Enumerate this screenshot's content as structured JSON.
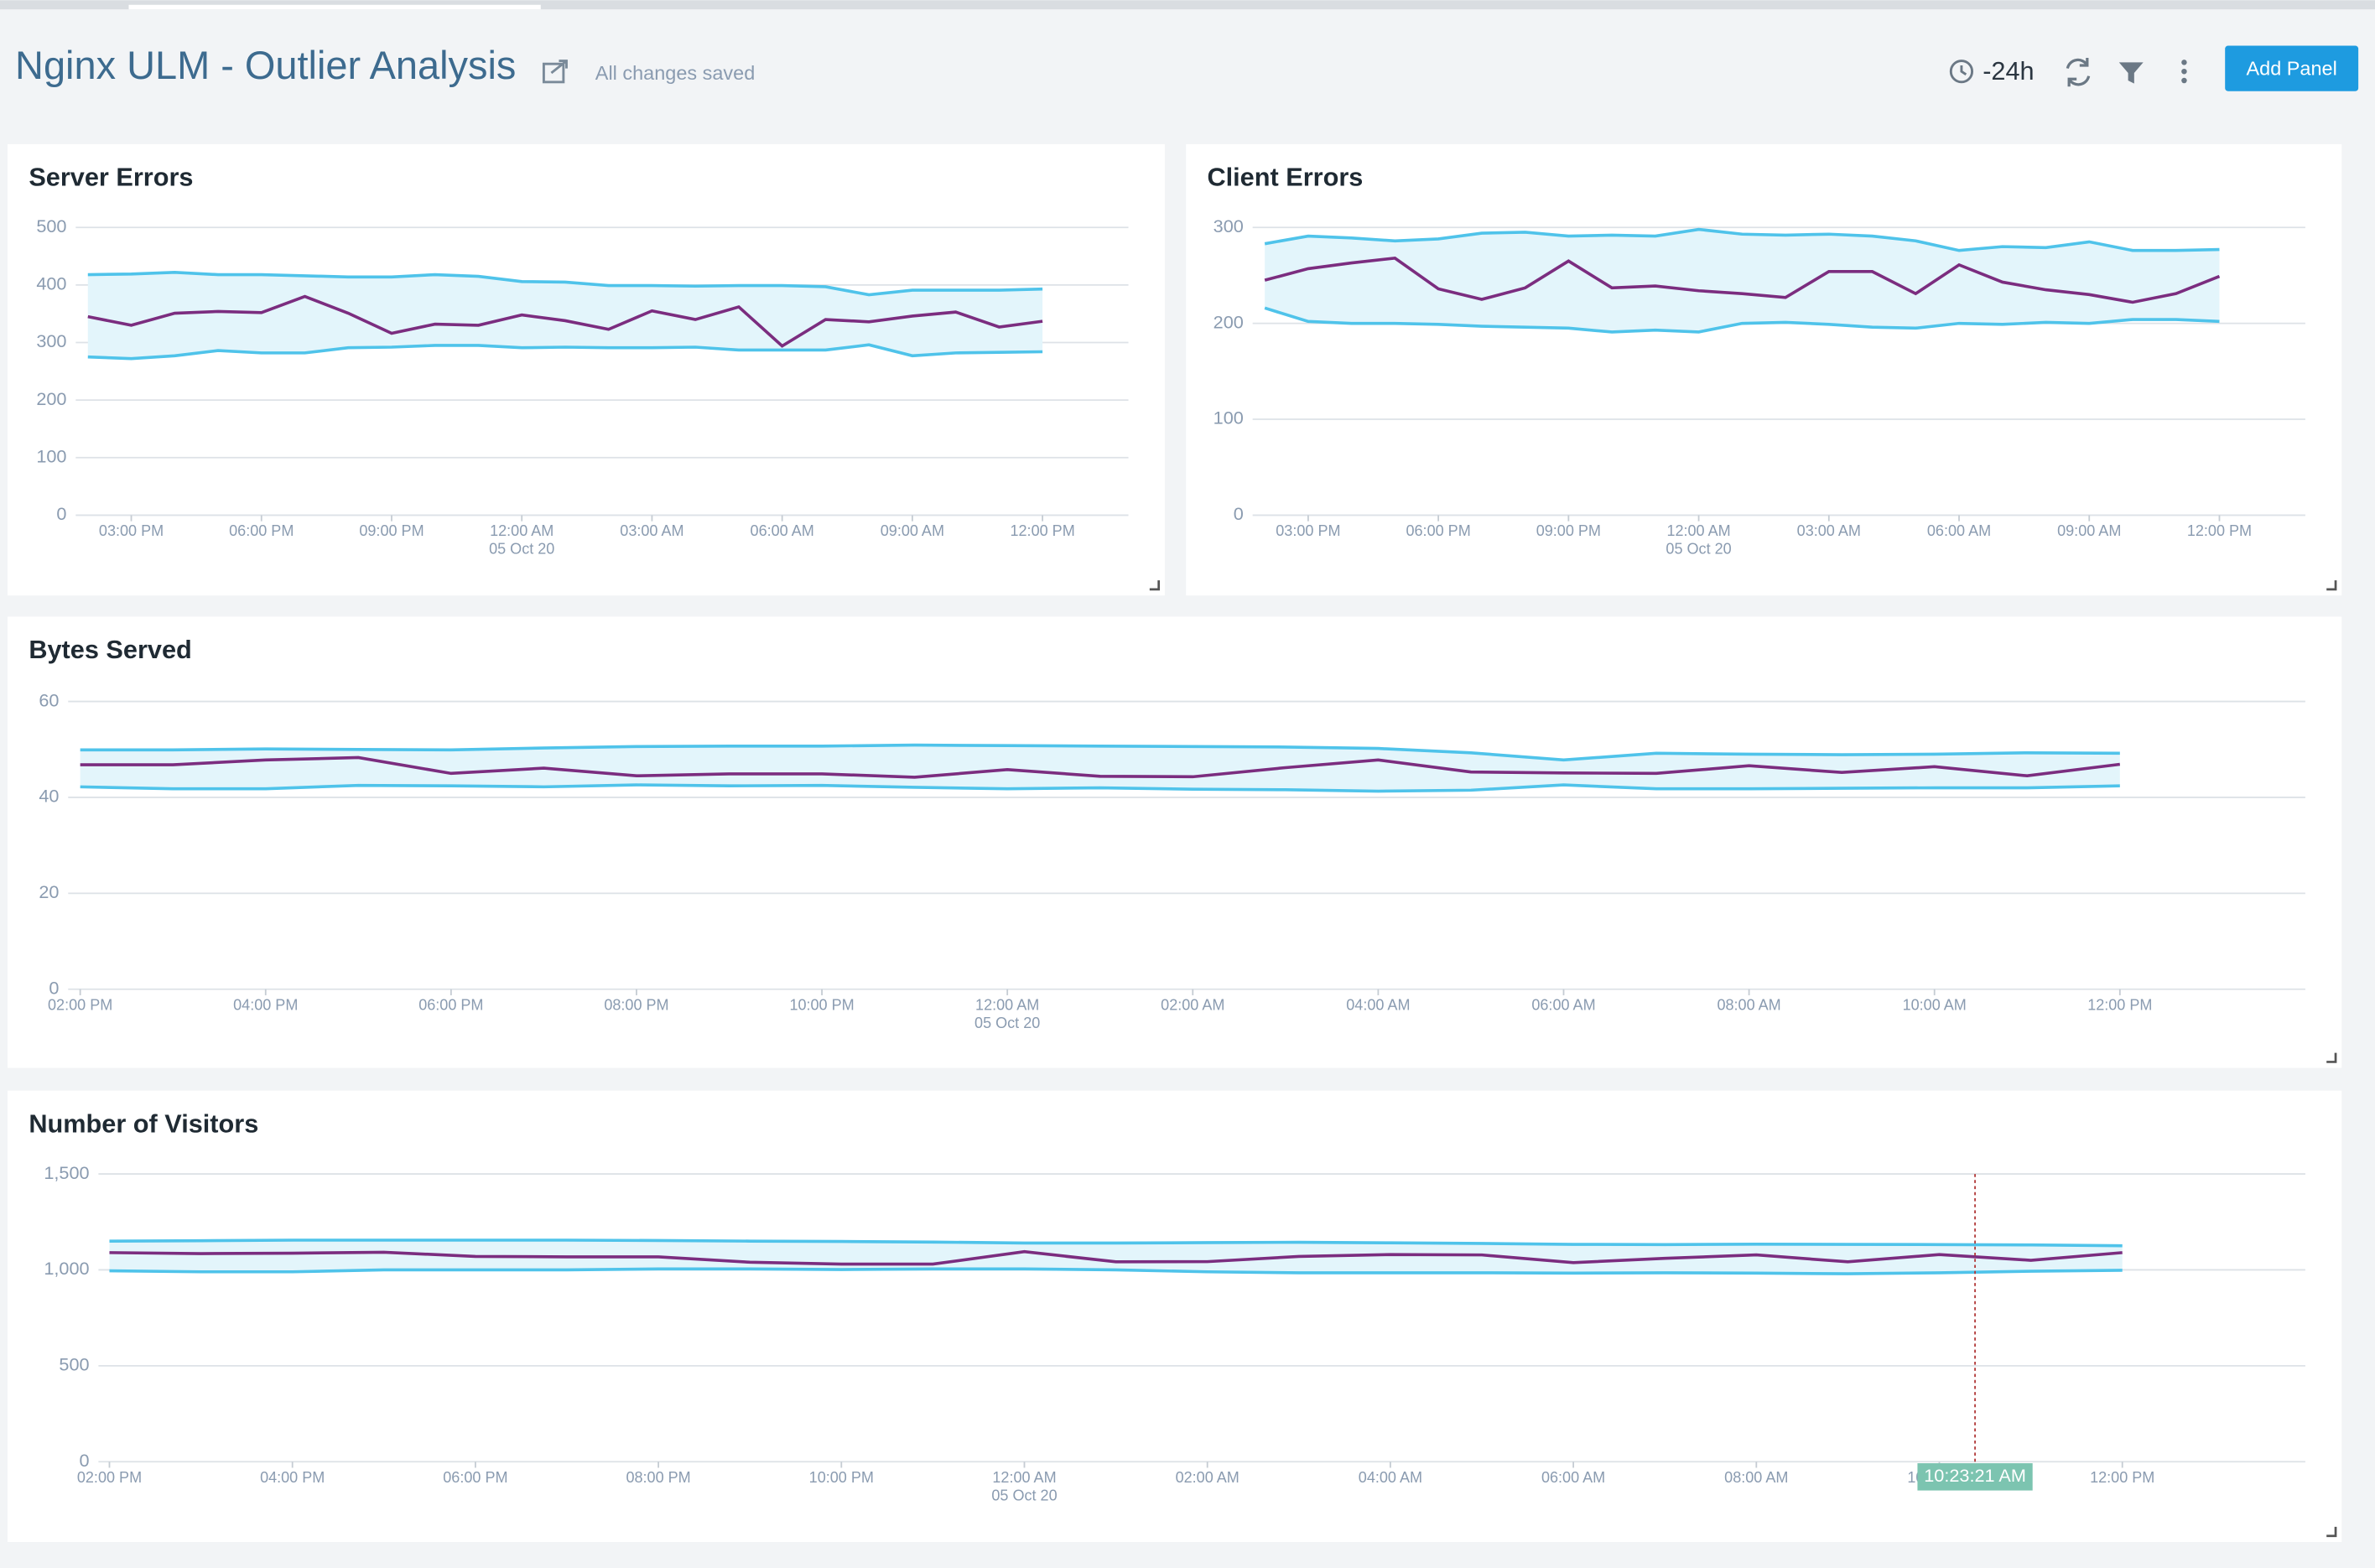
{
  "header": {
    "title": "Nginx ULM - Outlier Analysis",
    "status": "All changes saved",
    "time_range": "-24h",
    "button": "Add Panel"
  },
  "chart_data": [
    {
      "type": "line",
      "title": "Server Errors",
      "band": true,
      "band_color": "#e3f5fb",
      "grid": true,
      "x": [
        0,
        1,
        2,
        3,
        4,
        5,
        6,
        7,
        8,
        9,
        10,
        11,
        12,
        13,
        14,
        15,
        16,
        17,
        18,
        19,
        20,
        21,
        22
      ],
      "xlim": [
        -0.28,
        23.98
      ],
      "ylim": [
        0,
        500
      ],
      "yticks": [
        0,
        100,
        200,
        300,
        400,
        500
      ],
      "xticks": [
        {
          "value": 1,
          "label": "03:00 PM"
        },
        {
          "value": 4,
          "label": "06:00 PM"
        },
        {
          "value": 7,
          "label": "09:00 PM"
        },
        {
          "value": 10,
          "label": "12:00 AM",
          "date": "05 Oct 20"
        },
        {
          "value": 13,
          "label": "03:00 AM"
        },
        {
          "value": 16,
          "label": "06:00 AM"
        },
        {
          "value": 19,
          "label": "09:00 AM"
        },
        {
          "value": 22,
          "label": "12:00 PM"
        }
      ],
      "series": [
        {
          "color": "#4fc3ea",
          "values": [
            418,
            419,
            422,
            418,
            418,
            416,
            414,
            414,
            418,
            415,
            406,
            405,
            399,
            399,
            398,
            399,
            399,
            397,
            383,
            391,
            391,
            391,
            393
          ]
        },
        {
          "color": "#7b2d7f",
          "values": [
            345,
            330,
            351,
            354,
            352,
            380,
            351,
            316,
            332,
            330,
            348,
            338,
            323,
            355,
            340,
            362,
            294,
            340,
            336,
            346,
            353,
            327,
            337
          ]
        },
        {
          "color": "#4fc3ea",
          "values": [
            275,
            272,
            277,
            286,
            282,
            282,
            291,
            292,
            295,
            295,
            291,
            292,
            291,
            291,
            292,
            287,
            287,
            287,
            296,
            277,
            282,
            283,
            284
          ]
        }
      ]
    },
    {
      "type": "line",
      "title": "Client Errors",
      "band": true,
      "band_color": "#e3f5fb",
      "grid": true,
      "x": [
        0,
        1,
        2,
        3,
        4,
        5,
        6,
        7,
        8,
        9,
        10,
        11,
        12,
        13,
        14,
        15,
        16,
        17,
        18,
        19,
        20,
        21,
        22
      ],
      "xlim": [
        -0.28,
        23.98
      ],
      "ylim": [
        0,
        300
      ],
      "yticks": [
        0,
        100,
        200,
        300
      ],
      "xticks": [
        {
          "value": 1,
          "label": "03:00 PM"
        },
        {
          "value": 4,
          "label": "06:00 PM"
        },
        {
          "value": 7,
          "label": "09:00 PM"
        },
        {
          "value": 10,
          "label": "12:00 AM",
          "date": "05 Oct 20"
        },
        {
          "value": 13,
          "label": "03:00 AM"
        },
        {
          "value": 16,
          "label": "06:00 AM"
        },
        {
          "value": 19,
          "label": "09:00 AM"
        },
        {
          "value": 22,
          "label": "12:00 PM"
        }
      ],
      "series": [
        {
          "color": "#4fc3ea",
          "values": [
            283,
            291,
            289,
            286,
            288,
            294,
            295,
            291,
            292,
            291,
            298,
            293,
            292,
            293,
            291,
            286,
            276,
            280,
            279,
            285,
            276,
            276,
            277
          ]
        },
        {
          "color": "#7b2d7f",
          "values": [
            245,
            257,
            263,
            268,
            236,
            225,
            237,
            265,
            237,
            239,
            234,
            231,
            227,
            254,
            254,
            231,
            261,
            243,
            235,
            230,
            222,
            231,
            249
          ]
        },
        {
          "color": "#4fc3ea",
          "values": [
            216,
            202,
            200,
            200,
            199,
            197,
            196,
            195,
            191,
            193,
            191,
            200,
            201,
            199,
            196,
            195,
            200,
            199,
            201,
            200,
            204,
            204,
            202
          ]
        }
      ]
    },
    {
      "type": "line",
      "title": "Bytes Served",
      "band": true,
      "band_color": "#e3f5fb",
      "grid": true,
      "x": [
        0,
        1,
        2,
        3,
        4,
        5,
        6,
        7,
        8,
        9,
        10,
        11,
        12,
        13,
        14,
        15,
        16,
        17,
        18,
        19,
        20,
        21,
        22
      ],
      "xlim": [
        -0.13,
        24
      ],
      "ylim": [
        0,
        60
      ],
      "yticks": [
        0,
        20,
        40,
        60
      ],
      "xticks": [
        {
          "value": 0,
          "label": "02:00 PM"
        },
        {
          "value": 2,
          "label": "04:00 PM"
        },
        {
          "value": 4,
          "label": "06:00 PM"
        },
        {
          "value": 6,
          "label": "08:00 PM"
        },
        {
          "value": 8,
          "label": "10:00 PM"
        },
        {
          "value": 10,
          "label": "12:00 AM",
          "date": "05 Oct 20"
        },
        {
          "value": 12,
          "label": "02:00 AM"
        },
        {
          "value": 14,
          "label": "04:00 AM"
        },
        {
          "value": 16,
          "label": "06:00 AM"
        },
        {
          "value": 18,
          "label": "08:00 AM"
        },
        {
          "value": 20,
          "label": "10:00 AM"
        },
        {
          "value": 22,
          "label": "12:00 PM"
        }
      ],
      "series": [
        {
          "color": "#4fc3ea",
          "values": [
            49.9,
            49.9,
            50.1,
            50.0,
            49.9,
            50.3,
            50.6,
            50.7,
            50.7,
            50.9,
            50.8,
            50.7,
            50.6,
            50.5,
            50.2,
            49.3,
            47.8,
            49.2,
            49.0,
            48.9,
            49.0,
            49.3,
            49.2
          ]
        },
        {
          "color": "#7b2d7f",
          "values": [
            46.8,
            46.8,
            47.8,
            48.3,
            45.0,
            46.1,
            44.5,
            44.9,
            44.9,
            44.2,
            45.8,
            44.4,
            44.3,
            46.2,
            47.8,
            45.3,
            45.1,
            45.0,
            46.6,
            45.2,
            46.4,
            44.5,
            46.9
          ]
        },
        {
          "color": "#4fc3ea",
          "values": [
            42.2,
            41.8,
            41.8,
            42.5,
            42.4,
            42.2,
            42.6,
            42.4,
            42.5,
            42.1,
            41.8,
            42.0,
            41.7,
            41.6,
            41.3,
            41.5,
            42.6,
            41.8,
            41.8,
            41.9,
            42.0,
            42.0,
            42.4
          ]
        }
      ]
    },
    {
      "type": "line",
      "title": "Number of Visitors",
      "band": true,
      "band_color": "#e3f5fb",
      "grid": true,
      "x": [
        0,
        1,
        2,
        3,
        4,
        5,
        6,
        7,
        8,
        9,
        10,
        11,
        12,
        13,
        14,
        15,
        16,
        17,
        18,
        19,
        20,
        21,
        22
      ],
      "xlim": [
        -0.12,
        24
      ],
      "ylim": [
        0,
        1500
      ],
      "yticks": [
        0,
        500,
        {
          "value": 1000,
          "label": "1,000"
        },
        {
          "value": 1500,
          "label": "1,500"
        }
      ],
      "xticks": [
        {
          "value": 0,
          "label": "02:00 PM"
        },
        {
          "value": 2,
          "label": "04:00 PM"
        },
        {
          "value": 4,
          "label": "06:00 PM"
        },
        {
          "value": 6,
          "label": "08:00 PM"
        },
        {
          "value": 8,
          "label": "10:00 PM"
        },
        {
          "value": 10,
          "label": "12:00 AM",
          "date": "05 Oct 20"
        },
        {
          "value": 12,
          "label": "02:00 AM"
        },
        {
          "value": 14,
          "label": "04:00 AM"
        },
        {
          "value": 16,
          "label": "06:00 AM"
        },
        {
          "value": 18,
          "label": "08:00 AM"
        },
        {
          "value": 20,
          "label": "10:00 AM"
        },
        {
          "value": 22,
          "label": "12:00 PM"
        }
      ],
      "cursor": {
        "x": 20.39,
        "label": "10:23:21 AM"
      },
      "series": [
        {
          "color": "#4fc3ea",
          "values": [
            1150,
            1152,
            1155,
            1155,
            1155,
            1155,
            1153,
            1150,
            1148,
            1145,
            1140,
            1140,
            1142,
            1144,
            1141,
            1138,
            1133,
            1132,
            1134,
            1133,
            1132,
            1130,
            1126
          ]
        },
        {
          "color": "#7b2d7f",
          "values": [
            1090,
            1085,
            1087,
            1092,
            1070,
            1068,
            1068,
            1040,
            1030,
            1030,
            1095,
            1042,
            1043,
            1070,
            1080,
            1078,
            1038,
            1060,
            1078,
            1042,
            1080,
            1050,
            1090
          ]
        },
        {
          "color": "#4fc3ea",
          "values": [
            995,
            990,
            990,
            1000,
            1000,
            1000,
            1005,
            1005,
            1002,
            1005,
            1005,
            1000,
            990,
            985,
            985,
            985,
            983,
            985,
            983,
            980,
            985,
            993,
            998
          ]
        }
      ]
    }
  ]
}
